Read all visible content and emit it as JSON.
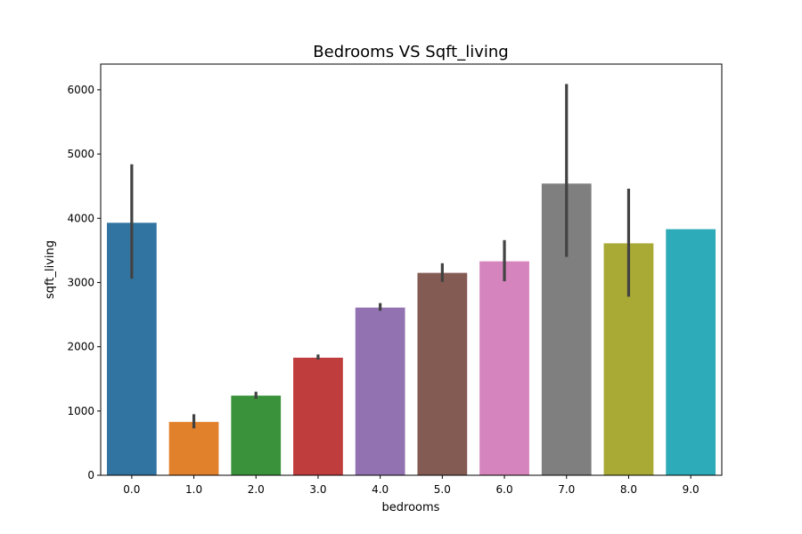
{
  "chart_data": {
    "type": "bar",
    "title": "Bedrooms VS Sqft_living",
    "xlabel": "bedrooms",
    "ylabel": "sqft_living",
    "categories": [
      "0.0",
      "1.0",
      "2.0",
      "3.0",
      "4.0",
      "5.0",
      "6.0",
      "7.0",
      "8.0",
      "9.0"
    ],
    "values": [
      3930,
      830,
      1240,
      1830,
      2610,
      3150,
      3330,
      4540,
      3610,
      3830
    ],
    "error_bars": [
      [
        3060,
        4840
      ],
      [
        730,
        950
      ],
      [
        1190,
        1300
      ],
      [
        1800,
        1880
      ],
      [
        2560,
        2680
      ],
      [
        3010,
        3300
      ],
      [
        3020,
        3660
      ],
      [
        3400,
        6090
      ],
      [
        2780,
        4460
      ],
      null
    ],
    "colors": [
      "#3274a1",
      "#e1812c",
      "#3a923a",
      "#c03d3e",
      "#9372b2",
      "#845b53",
      "#d684bd",
      "#7f7f7f",
      "#a9aa35",
      "#2eabb8"
    ],
    "ylim": [
      0,
      6400
    ],
    "yticks": [
      0,
      1000,
      2000,
      3000,
      4000,
      5000,
      6000
    ],
    "yticklabels": [
      "0",
      "1000",
      "2000",
      "3000",
      "4000",
      "5000",
      "6000"
    ],
    "grid": false,
    "legend": "none"
  }
}
